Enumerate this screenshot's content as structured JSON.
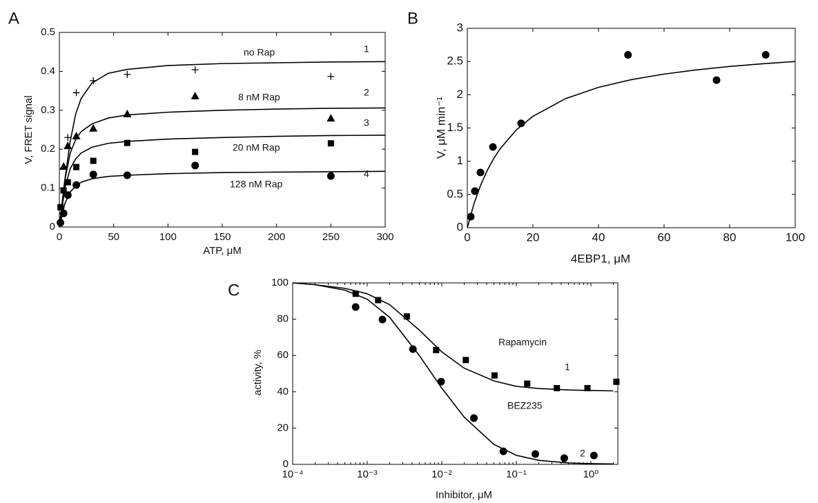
{
  "chart_data": [
    {
      "type": "scatter",
      "panel": "A",
      "x_label": "ATP, μM",
      "y_label": "V, FRET signal",
      "xlim": [
        0,
        300
      ],
      "ylim": [
        0,
        0.5
      ],
      "xticks": [
        0,
        50,
        100,
        150,
        200,
        250,
        300
      ],
      "yticks": [
        0,
        0.1,
        0.2,
        0.3,
        0.4,
        0.5
      ],
      "annotations": [
        "no Rap",
        "1",
        "8 nM Rap",
        "2",
        "3",
        "20 nM Rap",
        "4",
        "128 nM Rap"
      ],
      "series": [
        {
          "marker": "plus",
          "color": "#000",
          "x": [
            7.8,
            15.6,
            31.25,
            62.5,
            125,
            250
          ],
          "values": [
            0.23,
            0.345,
            0.376,
            0.392,
            0.404,
            0.387
          ],
          "fit_x": [
            0,
            5,
            10,
            15,
            20,
            30,
            45,
            62.5,
            100,
            150,
            200,
            250,
            300
          ],
          "fit_values": [
            0,
            0.12,
            0.22,
            0.29,
            0.33,
            0.37,
            0.395,
            0.405,
            0.415,
            0.42,
            0.422,
            0.424,
            0.425
          ]
        },
        {
          "marker": "triangle",
          "color": "#000",
          "x": [
            3.9,
            7.8,
            15.6,
            31.25,
            62.5,
            125,
            250
          ],
          "values": [
            0.156,
            0.209,
            0.234,
            0.254,
            0.291,
            0.337,
            0.28
          ],
          "fit_x": [
            0,
            5,
            10,
            15,
            20,
            30,
            45,
            62.5,
            100,
            150,
            200,
            250,
            300
          ],
          "fit_values": [
            0,
            0.12,
            0.19,
            0.225,
            0.245,
            0.265,
            0.28,
            0.288,
            0.295,
            0.3,
            0.303,
            0.305,
            0.306
          ]
        },
        {
          "marker": "square",
          "color": "#000",
          "x": [
            1,
            3.9,
            7.8,
            15.6,
            31.25,
            62.5,
            125,
            250
          ],
          "values": [
            0.051,
            0.094,
            0.115,
            0.154,
            0.17,
            0.216,
            0.193,
            0.215
          ],
          "fit_x": [
            0,
            5,
            10,
            15,
            20,
            30,
            45,
            62.5,
            100,
            150,
            200,
            250,
            300
          ],
          "fit_values": [
            0,
            0.1,
            0.15,
            0.175,
            0.19,
            0.205,
            0.215,
            0.22,
            0.226,
            0.23,
            0.233,
            0.235,
            0.236
          ]
        },
        {
          "marker": "circle",
          "color": "#000",
          "x": [
            1,
            3.9,
            7.8,
            15.6,
            31.25,
            62.5,
            125,
            250
          ],
          "values": [
            0.011,
            0.035,
            0.082,
            0.108,
            0.135,
            0.133,
            0.158,
            0.131
          ],
          "fit_x": [
            0,
            5,
            10,
            15,
            20,
            30,
            45,
            62.5,
            100,
            150,
            200,
            250,
            300
          ],
          "fit_values": [
            0,
            0.06,
            0.09,
            0.105,
            0.115,
            0.124,
            0.13,
            0.133,
            0.137,
            0.14,
            0.141,
            0.142,
            0.143
          ]
        }
      ]
    },
    {
      "type": "scatter",
      "panel": "B",
      "x_label": "4EBP1, μM",
      "y_label": "V, μM min⁻¹",
      "xlim": [
        0,
        100
      ],
      "ylim": [
        0,
        3
      ],
      "xticks": [
        0,
        20,
        40,
        60,
        80,
        100
      ],
      "yticks": [
        0,
        0.5,
        1,
        1.5,
        2,
        2.5,
        3
      ],
      "annotations": [],
      "series": [
        {
          "marker": "circle",
          "color": "#000",
          "x": [
            1.05,
            2.3,
            4,
            7.8,
            16.4,
            49,
            76,
            91
          ],
          "values": [
            0.166,
            0.55,
            0.83,
            1.215,
            1.57,
            2.6,
            2.22,
            2.6
          ],
          "fit_x": [
            0,
            2,
            4,
            6,
            8,
            10,
            15,
            20,
            30,
            40,
            50,
            60,
            70,
            80,
            90,
            100
          ],
          "fit_values": [
            0,
            0.356,
            0.633,
            0.855,
            1.036,
            1.188,
            1.474,
            1.676,
            1.943,
            2.111,
            2.227,
            2.311,
            2.375,
            2.426,
            2.466,
            2.5
          ]
        }
      ]
    },
    {
      "type": "scatter",
      "panel": "C",
      "x_label": "Inhibitor, μM",
      "y_label": "activity, %",
      "log_x": true,
      "xlim": [
        0.0001,
        2.3
      ],
      "ylim": [
        0,
        100
      ],
      "xticks": [
        {
          "value": 0.0001,
          "label": "10⁻⁴"
        },
        {
          "value": 0.001,
          "label": "10⁻³"
        },
        {
          "value": 0.01,
          "label": "10⁻²"
        },
        {
          "value": 0.1,
          "label": "10⁻¹"
        },
        {
          "value": 1,
          "label": "10⁰"
        }
      ],
      "yticks": [
        0,
        20,
        40,
        60,
        80,
        100
      ],
      "annotations": [
        "Rapamycin",
        "1",
        "BEZ235",
        "2"
      ],
      "series": [
        {
          "marker": "square",
          "color": "#000",
          "x": [
            0.0007,
            0.0014,
            0.0034,
            0.0084,
            0.021,
            0.051,
            0.14,
            0.35,
            0.9,
            2.2
          ],
          "values": [
            94,
            90.5,
            81.5,
            63,
            57.5,
            49,
            44.5,
            42,
            42,
            45.5
          ],
          "fit_x": [
            0.0001,
            0.0002,
            0.0005,
            0.001,
            0.002,
            0.005,
            0.01,
            0.02,
            0.05,
            0.1,
            0.2,
            0.5,
            1,
            2
          ],
          "fit_values": [
            100,
            99,
            97,
            94,
            88,
            74,
            62,
            53,
            46,
            43,
            41.8,
            41,
            40.7,
            40.5
          ]
        },
        {
          "marker": "circle",
          "color": "#000",
          "x": [
            0.0007,
            0.0016,
            0.0041,
            0.0098,
            0.027,
            0.067,
            0.18,
            0.44,
            1.1
          ],
          "values": [
            86.7,
            79.8,
            63.5,
            45.6,
            25.5,
            7.2,
            5.7,
            3.4,
            4.9
          ],
          "fit_x": [
            0.0001,
            0.0002,
            0.0005,
            0.001,
            0.002,
            0.005,
            0.01,
            0.02,
            0.05,
            0.1,
            0.2,
            0.5,
            1,
            2
          ],
          "fit_values": [
            100,
            99,
            96,
            91,
            81,
            60,
            42,
            26,
            11,
            5,
            2.2,
            0.8,
            0.4,
            0.2
          ]
        }
      ]
    }
  ]
}
